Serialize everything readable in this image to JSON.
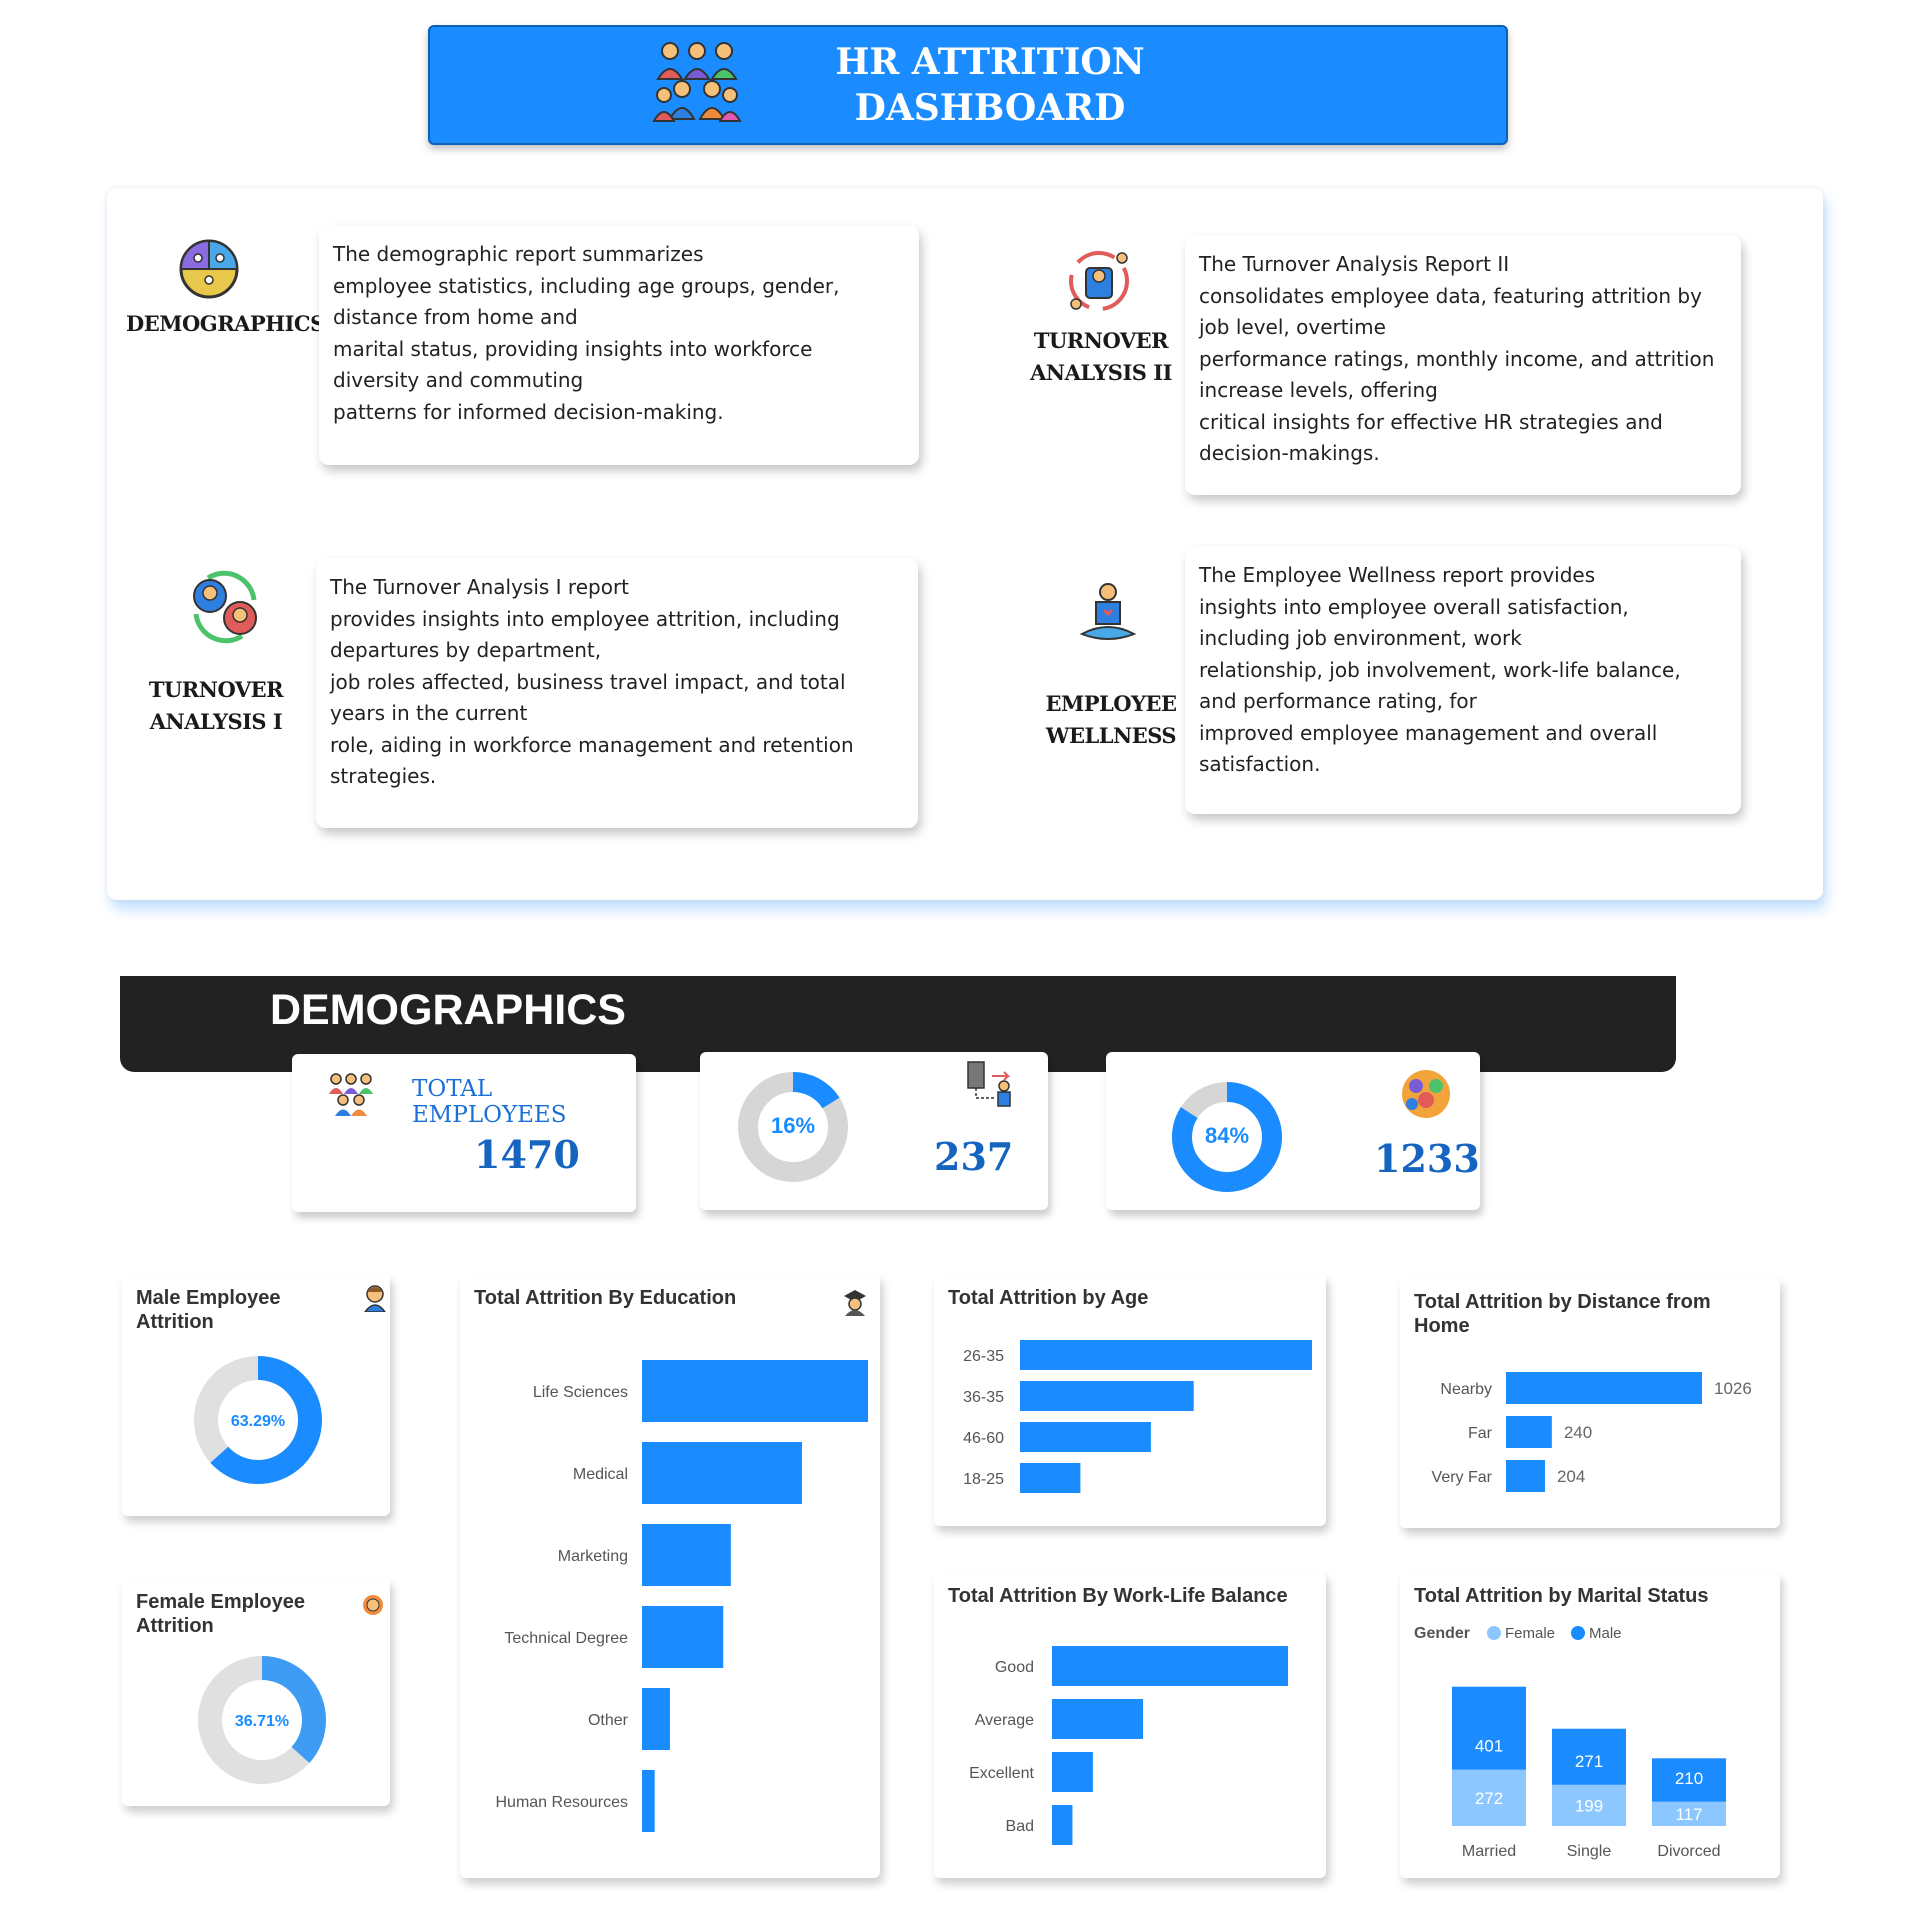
{
  "header": {
    "title": "HR ATTRITION\nDASHBOARD"
  },
  "sections": [
    {
      "label": "DEMOGRAPHICS",
      "text": "The demographic report summarizes\nemployee statistics, including age groups, gender,\ndistance from home and\nmarital status, providing insights into workforce\ndiversity and commuting\npatterns for informed decision-making."
    },
    {
      "label": "TURNOVER\nANALYSIS II",
      "text": "The Turnover Analysis Report II\nconsolidates employee data, featuring attrition by\njob level, overtime\nperformance ratings, monthly income, and attrition\nincrease levels, offering\ncritical insights for effective HR strategies and\ndecision-makings."
    },
    {
      "label": "TURNOVER\nANALYSIS I",
      "text": "The Turnover Analysis I report\nprovides insights into employee attrition, including\ndepartures by department,\njob roles affected, business travel impact, and total\nyears in the current\nrole, aiding in workforce management and retention\nstrategies."
    },
    {
      "label": "EMPLOYEE\nWELLNESS",
      "text": "The Employee Wellness report provides\ninsights into employee overall satisfaction,\nincluding job environment, work\nrelationship, job involvement, work-life balance,\nand performance rating, for\nimproved employee management and overall\nsatisfaction."
    }
  ],
  "demographics": {
    "banner_title": "DEMOGRAPHICS",
    "kpis": {
      "total_label": "TOTAL EMPLOYEES",
      "total_value": "1470",
      "attrition_pct_label": "16%",
      "attrition_pct": 16,
      "attrition_value": "237",
      "active_pct_label": "84%",
      "active_pct": 84,
      "active_value": "1233"
    },
    "male": {
      "title": "Male Employee\nAttrition",
      "pct_label": "63.29%",
      "pct": 63.29
    },
    "female": {
      "title": "Female Employee\nAttrition",
      "pct_label": "36.71%",
      "pct": 36.71
    }
  },
  "colors": {
    "accent": "#1a8cff",
    "accent_light": "#8cc8ff",
    "track": "#e0e0e0",
    "banner": "#222222"
  },
  "chart_data": [
    {
      "type": "bar",
      "orientation": "horizontal",
      "title": "Total Attrition By Education",
      "categories": [
        "Life Sciences",
        "Medical",
        "Marketing",
        "Technical Degree",
        "Other",
        "Human Resources"
      ],
      "values": [
        89,
        63,
        35,
        32,
        11,
        5
      ]
    },
    {
      "type": "bar",
      "orientation": "horizontal",
      "title": "Total Attrition by Age",
      "categories": [
        "26-35",
        "36-35",
        "46-60",
        "18-25"
      ],
      "values": [
        116,
        69,
        52,
        24
      ]
    },
    {
      "type": "bar",
      "orientation": "horizontal",
      "title": "Total Attrition by Distance from Home",
      "categories": [
        "Nearby",
        "Far",
        "Very Far"
      ],
      "values": [
        1026,
        240,
        204
      ]
    },
    {
      "type": "bar",
      "orientation": "horizontal",
      "title": "Total Attrition By Work-Life Balance",
      "categories": [
        "Good",
        "Average",
        "Excellent",
        "Bad"
      ],
      "values": [
        127,
        49,
        22,
        11
      ]
    },
    {
      "type": "bar",
      "stacked": true,
      "title": "Total Attrition by Marital Status",
      "legend_title": "Gender",
      "categories": [
        "Married",
        "Single",
        "Divorced"
      ],
      "series": [
        {
          "name": "Female",
          "values": [
            272,
            199,
            117
          ]
        },
        {
          "name": "Male",
          "values": [
            401,
            271,
            210
          ]
        }
      ]
    }
  ]
}
